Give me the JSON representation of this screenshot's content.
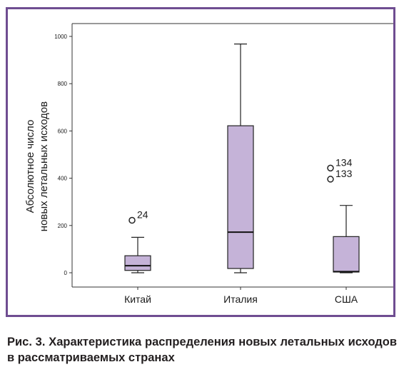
{
  "chart_data": {
    "type": "boxplot",
    "ylabel_line1": "Абсолютное число",
    "ylabel_line2": "новых летальных исходов",
    "ylim": [
      0,
      1000
    ],
    "yticks": [
      0,
      200,
      400,
      600,
      800,
      1000
    ],
    "categories": [
      "Китай",
      "Италия",
      "США"
    ],
    "boxes": [
      {
        "category": "Китай",
        "whisker_low": 0,
        "q1": 10,
        "median": 30,
        "q3": 72,
        "whisker_high": 150,
        "outliers": [
          {
            "value": 222,
            "label": "24"
          }
        ]
      },
      {
        "category": "Италия",
        "whisker_low": 0,
        "q1": 18,
        "median": 172,
        "q3": 622,
        "whisker_high": 968,
        "outliers": []
      },
      {
        "category": "США",
        "whisker_low": 0,
        "q1": 3,
        "median": 5,
        "q3": 153,
        "whisker_high": 285,
        "outliers": [
          {
            "value": 443,
            "label": "134"
          },
          {
            "value": 396,
            "label": "133"
          }
        ]
      }
    ],
    "box_color": "#c5b3d8",
    "frame_color": "#6f4d91",
    "grid": false
  },
  "caption": "Рис. 3. Характеристика распределения новых леталь­ных исходов в рассматриваемых странах"
}
